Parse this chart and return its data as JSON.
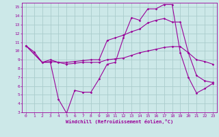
{
  "background_color": "#cce8e8",
  "grid_color": "#aacccc",
  "line_color": "#990099",
  "xlabel": "Windchill (Refroidissement éolien,°C)",
  "xlim": [
    -0.5,
    23.5
  ],
  "ylim": [
    3,
    15.5
  ],
  "xticks": [
    0,
    1,
    2,
    3,
    4,
    5,
    6,
    7,
    8,
    9,
    10,
    11,
    12,
    13,
    14,
    15,
    16,
    17,
    18,
    19,
    20,
    21,
    22,
    23
  ],
  "yticks": [
    3,
    4,
    5,
    6,
    7,
    8,
    9,
    10,
    11,
    12,
    13,
    14,
    15
  ],
  "line1_x": [
    0,
    1,
    2,
    3,
    4,
    5,
    6,
    7,
    8,
    9,
    10,
    11,
    12,
    13,
    14,
    15,
    16,
    17,
    18,
    19,
    20,
    21,
    22,
    23
  ],
  "line1_y": [
    10.6,
    9.9,
    8.7,
    8.7,
    4.5,
    2.9,
    5.5,
    5.3,
    5.3,
    6.8,
    8.5,
    8.7,
    11.5,
    13.8,
    13.5,
    14.8,
    14.8,
    15.3,
    15.3,
    9.8,
    7.0,
    5.2,
    5.7,
    6.3
  ],
  "line2_x": [
    0,
    2,
    3,
    4,
    5,
    6,
    7,
    8,
    9,
    10,
    11,
    12,
    13,
    14,
    15,
    16,
    17,
    18,
    19,
    20,
    21,
    22,
    23
  ],
  "line2_y": [
    10.6,
    8.7,
    9.0,
    8.7,
    8.7,
    8.8,
    8.9,
    9.0,
    9.0,
    11.2,
    11.5,
    11.8,
    12.2,
    12.5,
    13.2,
    13.5,
    13.7,
    13.3,
    13.3,
    9.8,
    7.2,
    6.6,
    6.4
  ],
  "line3_x": [
    0,
    2,
    3,
    4,
    5,
    6,
    7,
    8,
    9,
    10,
    11,
    12,
    13,
    14,
    15,
    16,
    17,
    18,
    19,
    20,
    21,
    22,
    23
  ],
  "line3_y": [
    10.6,
    8.7,
    8.8,
    8.7,
    8.5,
    8.6,
    8.7,
    8.7,
    8.7,
    9.0,
    9.1,
    9.2,
    9.5,
    9.8,
    10.0,
    10.2,
    10.4,
    10.5,
    10.5,
    9.8,
    9.0,
    8.8,
    8.5
  ]
}
